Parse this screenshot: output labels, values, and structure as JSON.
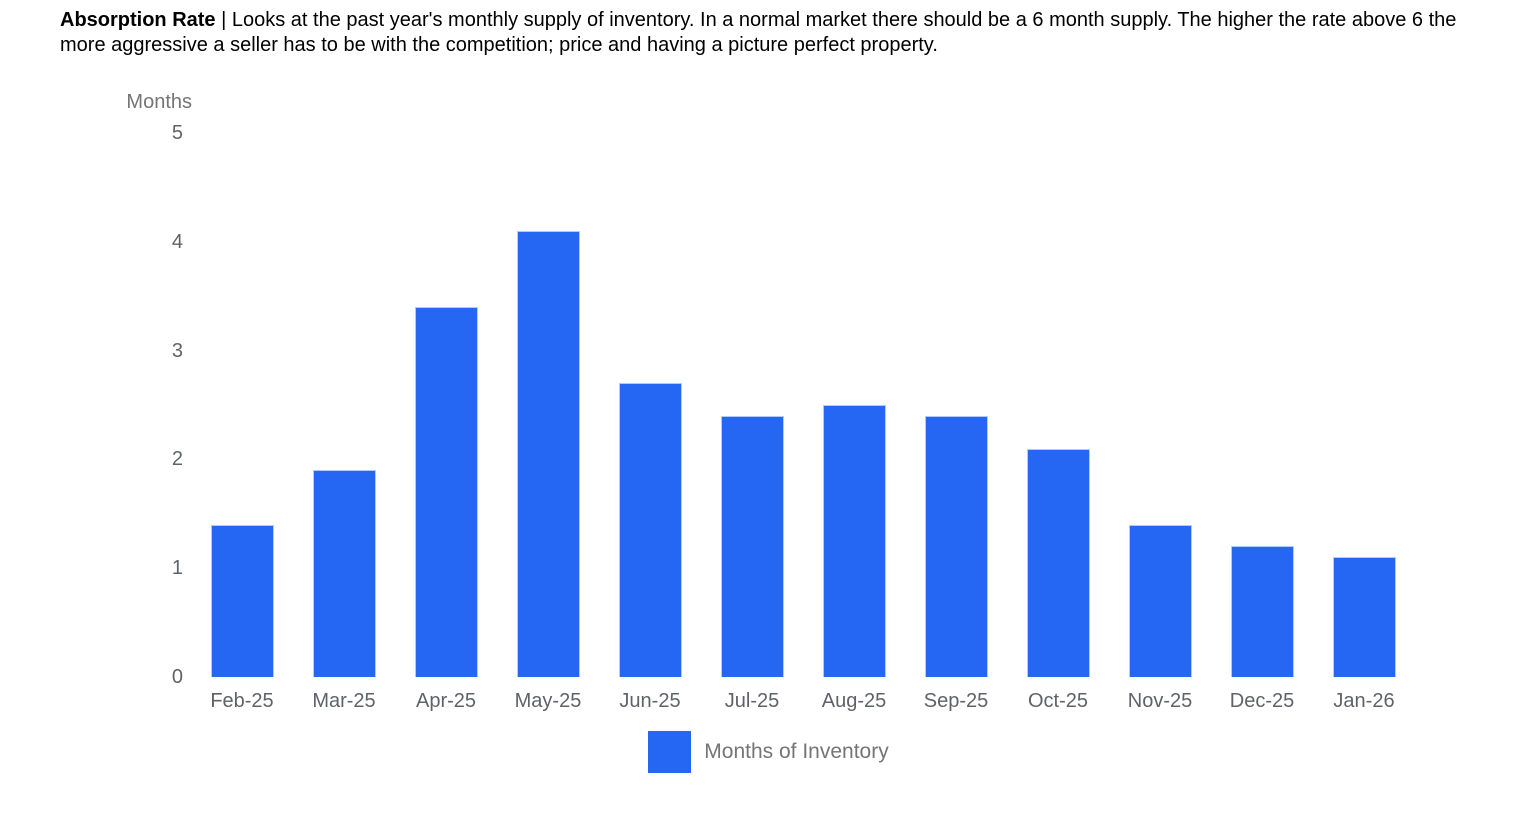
{
  "header": {
    "title": "Absorption Rate",
    "separator": " | ",
    "description": "Looks at the past year's monthly supply of inventory. In a normal market there should be a 6 month supply. The higher the rate above 6 the more aggressive a seller has to be with the competition; price and having a picture perfect property."
  },
  "chart_data": {
    "type": "bar",
    "title": "Absorption Rate",
    "categories": [
      "Feb-25",
      "Mar-25",
      "Apr-25",
      "May-25",
      "Jun-25",
      "Jul-25",
      "Aug-25",
      "Sep-25",
      "Oct-25",
      "Nov-25",
      "Dec-25",
      "Jan-26"
    ],
    "values": [
      1.4,
      1.9,
      3.4,
      4.1,
      2.7,
      2.4,
      2.5,
      2.4,
      2.1,
      1.4,
      1.2,
      1.1
    ],
    "xlabel": "",
    "ylabel": "Months",
    "ylim": [
      0,
      5
    ],
    "ytick_step": 1,
    "grid": false,
    "legend": {
      "label": "Months of Inventory",
      "position": "bottom"
    }
  },
  "colors": {
    "bar": "#2567f3",
    "bar_border": "#aecbfa",
    "axis_text": "#5f6368",
    "muted_text": "#757575",
    "header_text": "#000000",
    "background": "#ffffff"
  }
}
